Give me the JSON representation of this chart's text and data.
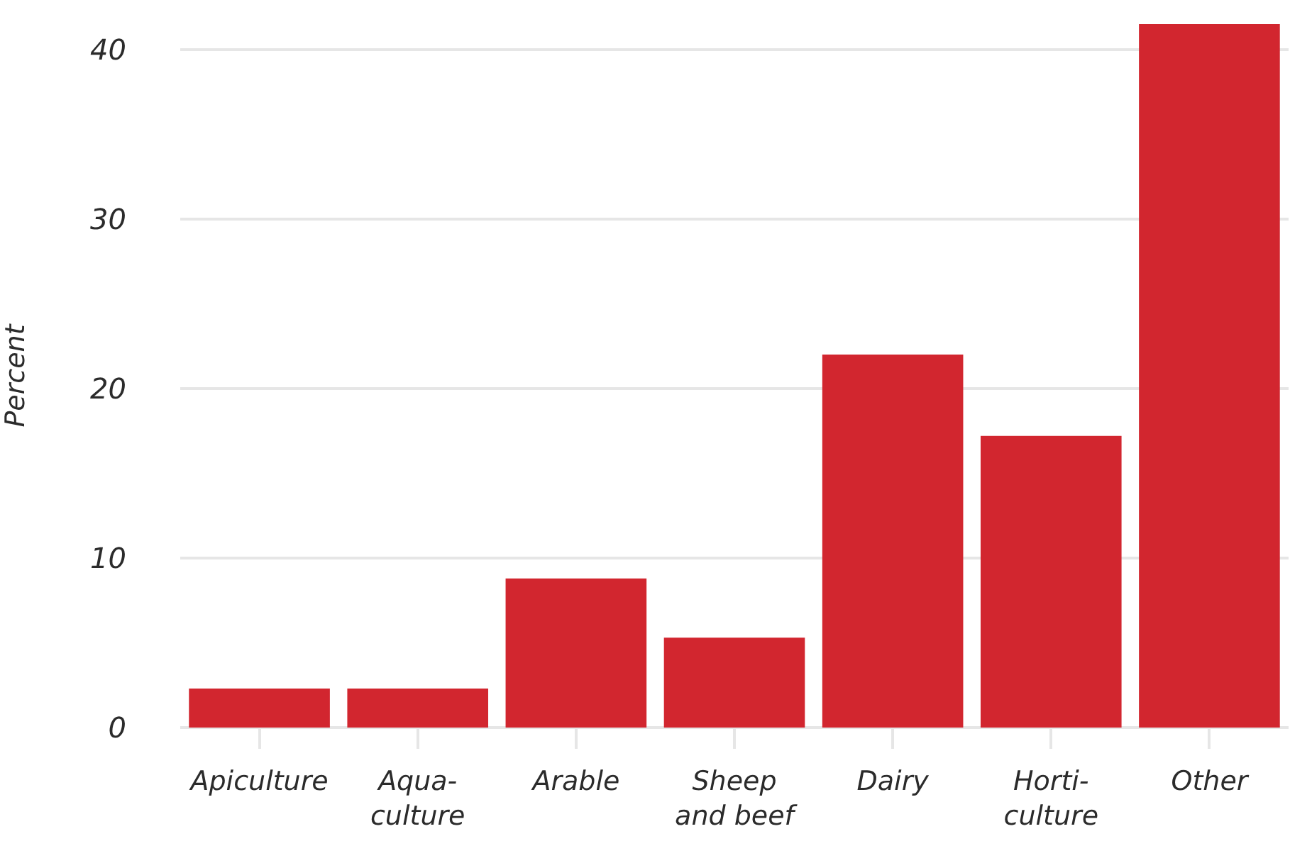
{
  "chart_data": {
    "type": "bar",
    "ylabel": "Percent",
    "categories": [
      "Apiculture",
      "Aqua-\nculture",
      "Arable",
      "Sheep\nand beef",
      "Dairy",
      "Horti-\nculture",
      "Other"
    ],
    "values": [
      2.3,
      2.3,
      8.8,
      5.3,
      22,
      17.2,
      41.5
    ],
    "color": "#d2262f",
    "ylim": [
      0,
      41.5
    ],
    "yticks": [
      0,
      10,
      20,
      30,
      40
    ],
    "grid": "y"
  }
}
